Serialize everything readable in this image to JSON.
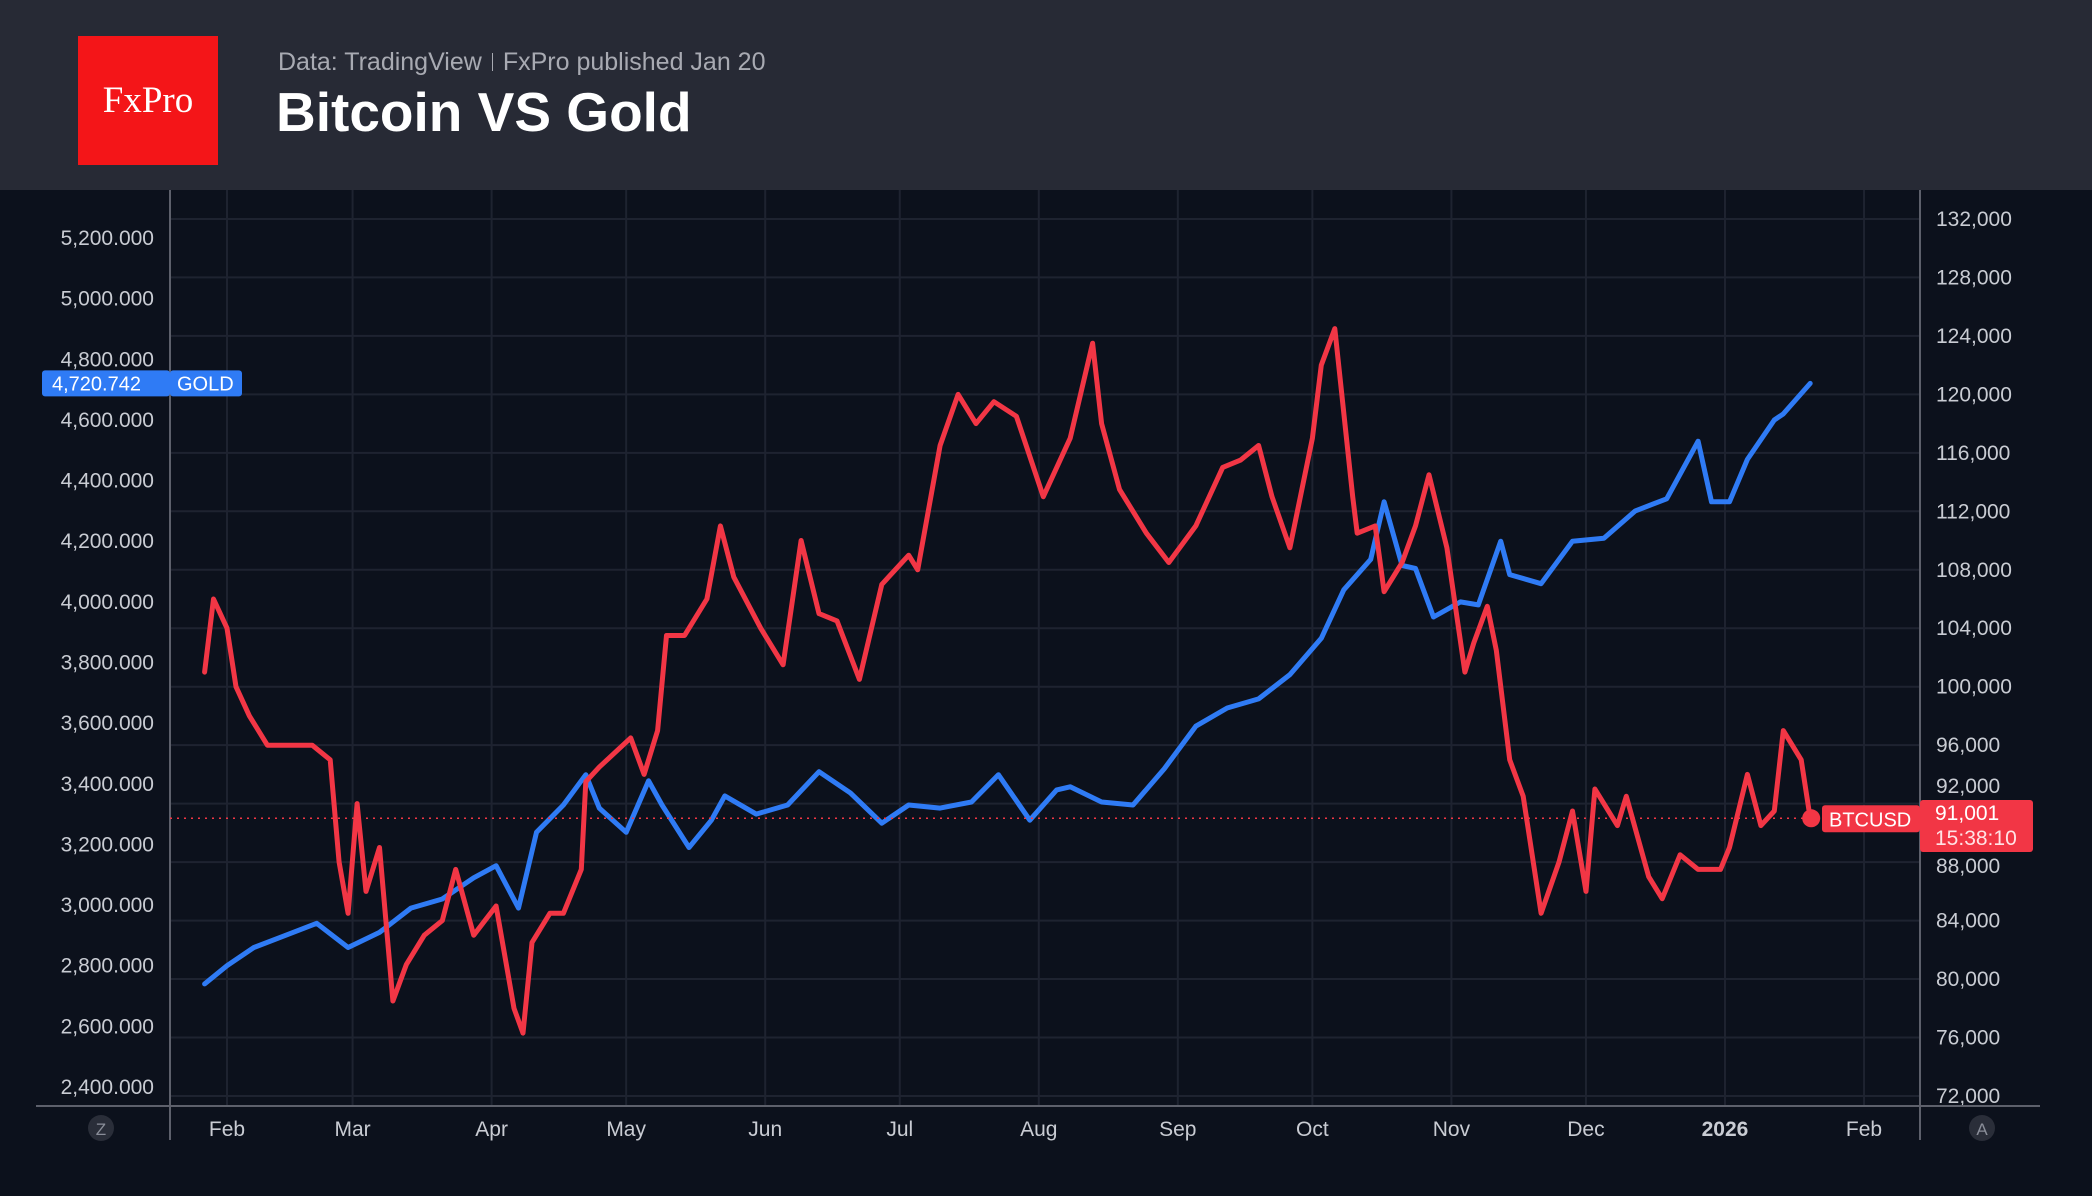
{
  "header": {
    "logo_text": "FxPro",
    "source": "Data: TradingView",
    "published": "FxPro published Jan 20",
    "title": "Bitcoin VS Gold"
  },
  "colors": {
    "gold_series": "#2f7bf5",
    "btc_series": "#f23645",
    "header_bg": "#272a35",
    "chart_bg": "#0c111c",
    "logo_bg": "#f41518"
  },
  "corner_buttons": {
    "left": "Z",
    "right": "A"
  },
  "chart_data": {
    "type": "line",
    "title": "Bitcoin VS Gold",
    "x_ticks": [
      "Feb",
      "Mar",
      "Apr",
      "May",
      "Jun",
      "Jul",
      "Aug",
      "Sep",
      "Oct",
      "Nov",
      "Dec",
      "2026",
      "Feb"
    ],
    "x_tick_dates": [
      "2025-02-01",
      "2025-03-01",
      "2025-04-01",
      "2025-05-01",
      "2025-06-01",
      "2025-07-01",
      "2025-08-01",
      "2025-09-01",
      "2025-10-01",
      "2025-11-01",
      "2025-12-01",
      "2026-01-01",
      "2026-02-01"
    ],
    "left_axis": {
      "ticks": [
        "2,400.000",
        "2,600.000",
        "2,800.000",
        "3,000.000",
        "3,200.000",
        "3,400.000",
        "3,600.000",
        "3,800.000",
        "4,000.000",
        "4,200.000",
        "4,400.000",
        "4,600.000",
        "4,800.000",
        "5,000.000",
        "5,200.000"
      ],
      "range": [
        2400,
        5200
      ]
    },
    "right_axis": {
      "ticks": [
        "72,000",
        "76,000",
        "80,000",
        "84,000",
        "88,000",
        "92,000",
        "96,000",
        "100,000",
        "104,000",
        "108,000",
        "112,000",
        "116,000",
        "120,000",
        "124,000",
        "128,000",
        "132,000"
      ],
      "range": [
        72000,
        132000
      ]
    },
    "grid": true,
    "series": [
      {
        "name": "GOLD",
        "axis": "left",
        "last_value": "4,720.742",
        "points": [
          [
            "2025-01-27",
            2740
          ],
          [
            "2025-02-01",
            2800
          ],
          [
            "2025-02-07",
            2860
          ],
          [
            "2025-02-14",
            2900
          ],
          [
            "2025-02-21",
            2940
          ],
          [
            "2025-02-28",
            2860
          ],
          [
            "2025-03-07",
            2910
          ],
          [
            "2025-03-14",
            2990
          ],
          [
            "2025-03-21",
            3020
          ],
          [
            "2025-03-28",
            3090
          ],
          [
            "2025-04-02",
            3130
          ],
          [
            "2025-04-07",
            2990
          ],
          [
            "2025-04-11",
            3240
          ],
          [
            "2025-04-17",
            3330
          ],
          [
            "2025-04-22",
            3430
          ],
          [
            "2025-04-25",
            3320
          ],
          [
            "2025-05-01",
            3240
          ],
          [
            "2025-05-06",
            3410
          ],
          [
            "2025-05-09",
            3330
          ],
          [
            "2025-05-15",
            3190
          ],
          [
            "2025-05-20",
            3280
          ],
          [
            "2025-05-23",
            3360
          ],
          [
            "2025-05-30",
            3300
          ],
          [
            "2025-06-06",
            3330
          ],
          [
            "2025-06-13",
            3440
          ],
          [
            "2025-06-20",
            3370
          ],
          [
            "2025-06-27",
            3270
          ],
          [
            "2025-07-03",
            3330
          ],
          [
            "2025-07-10",
            3320
          ],
          [
            "2025-07-17",
            3340
          ],
          [
            "2025-07-23",
            3430
          ],
          [
            "2025-07-30",
            3280
          ],
          [
            "2025-08-05",
            3380
          ],
          [
            "2025-08-08",
            3390
          ],
          [
            "2025-08-15",
            3340
          ],
          [
            "2025-08-22",
            3330
          ],
          [
            "2025-08-29",
            3450
          ],
          [
            "2025-09-05",
            3590
          ],
          [
            "2025-09-12",
            3650
          ],
          [
            "2025-09-19",
            3680
          ],
          [
            "2025-09-26",
            3760
          ],
          [
            "2025-10-03",
            3880
          ],
          [
            "2025-10-08",
            4040
          ],
          [
            "2025-10-14",
            4140
          ],
          [
            "2025-10-17",
            4330
          ],
          [
            "2025-10-21",
            4120
          ],
          [
            "2025-10-24",
            4110
          ],
          [
            "2025-10-28",
            3950
          ],
          [
            "2025-11-03",
            4000
          ],
          [
            "2025-11-07",
            3990
          ],
          [
            "2025-11-12",
            4200
          ],
          [
            "2025-11-14",
            4090
          ],
          [
            "2025-11-21",
            4060
          ],
          [
            "2025-11-28",
            4200
          ],
          [
            "2025-12-05",
            4210
          ],
          [
            "2025-12-12",
            4300
          ],
          [
            "2025-12-19",
            4340
          ],
          [
            "2025-12-26",
            4530
          ],
          [
            "2025-12-29",
            4330
          ],
          [
            "2026-01-02",
            4330
          ],
          [
            "2026-01-06",
            4470
          ],
          [
            "2026-01-12",
            4600
          ],
          [
            "2026-01-14",
            4620
          ],
          [
            "2026-01-20",
            4720.742
          ]
        ]
      },
      {
        "name": "BTCUSD",
        "axis": "right",
        "last_value": "91,001",
        "countdown": "15:38:10",
        "points": [
          [
            "2025-01-27",
            101000
          ],
          [
            "2025-01-29",
            106000
          ],
          [
            "2025-02-01",
            104000
          ],
          [
            "2025-02-03",
            100000
          ],
          [
            "2025-02-06",
            98000
          ],
          [
            "2025-02-10",
            96000
          ],
          [
            "2025-02-20",
            96000
          ],
          [
            "2025-02-24",
            95000
          ],
          [
            "2025-02-26",
            88000
          ],
          [
            "2025-02-28",
            84500
          ],
          [
            "2025-03-02",
            92000
          ],
          [
            "2025-03-04",
            86000
          ],
          [
            "2025-03-07",
            89000
          ],
          [
            "2025-03-10",
            78500
          ],
          [
            "2025-03-13",
            81000
          ],
          [
            "2025-03-17",
            83000
          ],
          [
            "2025-03-21",
            84000
          ],
          [
            "2025-03-24",
            87500
          ],
          [
            "2025-03-28",
            83000
          ],
          [
            "2025-04-02",
            85000
          ],
          [
            "2025-04-06",
            78000
          ],
          [
            "2025-04-08",
            76300
          ],
          [
            "2025-04-10",
            82500
          ],
          [
            "2025-04-14",
            84500
          ],
          [
            "2025-04-17",
            84500
          ],
          [
            "2025-04-21",
            87500
          ],
          [
            "2025-04-22",
            93500
          ],
          [
            "2025-04-25",
            94500
          ],
          [
            "2025-05-02",
            96500
          ],
          [
            "2025-05-05",
            94000
          ],
          [
            "2025-05-08",
            97000
          ],
          [
            "2025-05-10",
            103500
          ],
          [
            "2025-05-14",
            103500
          ],
          [
            "2025-05-19",
            106000
          ],
          [
            "2025-05-22",
            111000
          ],
          [
            "2025-05-25",
            107500
          ],
          [
            "2025-05-31",
            104000
          ],
          [
            "2025-06-05",
            101500
          ],
          [
            "2025-06-09",
            110000
          ],
          [
            "2025-06-13",
            105000
          ],
          [
            "2025-06-17",
            104500
          ],
          [
            "2025-06-22",
            100500
          ],
          [
            "2025-06-27",
            107000
          ],
          [
            "2025-07-03",
            109000
          ],
          [
            "2025-07-05",
            108000
          ],
          [
            "2025-07-10",
            116500
          ],
          [
            "2025-07-14",
            120000
          ],
          [
            "2025-07-18",
            118000
          ],
          [
            "2025-07-22",
            119500
          ],
          [
            "2025-07-27",
            118500
          ],
          [
            "2025-08-02",
            113000
          ],
          [
            "2025-08-08",
            117000
          ],
          [
            "2025-08-13",
            123500
          ],
          [
            "2025-08-15",
            118000
          ],
          [
            "2025-08-19",
            113500
          ],
          [
            "2025-08-25",
            110500
          ],
          [
            "2025-08-30",
            108500
          ],
          [
            "2025-09-05",
            111000
          ],
          [
            "2025-09-11",
            115000
          ],
          [
            "2025-09-15",
            115500
          ],
          [
            "2025-09-19",
            116500
          ],
          [
            "2025-09-22",
            113000
          ],
          [
            "2025-09-26",
            109500
          ],
          [
            "2025-10-01",
            117000
          ],
          [
            "2025-10-03",
            122000
          ],
          [
            "2025-10-06",
            124500
          ],
          [
            "2025-10-10",
            113000
          ],
          [
            "2025-10-11",
            110500
          ],
          [
            "2025-10-15",
            111000
          ],
          [
            "2025-10-17",
            106500
          ],
          [
            "2025-10-21",
            108500
          ],
          [
            "2025-10-24",
            111000
          ],
          [
            "2025-10-27",
            114500
          ],
          [
            "2025-10-31",
            109500
          ],
          [
            "2025-11-04",
            101000
          ],
          [
            "2025-11-06",
            103000
          ],
          [
            "2025-11-09",
            105500
          ],
          [
            "2025-11-11",
            102500
          ],
          [
            "2025-11-14",
            95000
          ],
          [
            "2025-11-17",
            92500
          ],
          [
            "2025-11-21",
            84500
          ],
          [
            "2025-11-25",
            88000
          ],
          [
            "2025-11-28",
            91500
          ],
          [
            "2025-12-01",
            86000
          ],
          [
            "2025-12-03",
            93000
          ],
          [
            "2025-12-08",
            90500
          ],
          [
            "2025-12-10",
            92500
          ],
          [
            "2025-12-15",
            87000
          ],
          [
            "2025-12-18",
            85500
          ],
          [
            "2025-12-22",
            88500
          ],
          [
            "2025-12-26",
            87500
          ],
          [
            "2025-12-31",
            87500
          ],
          [
            "2026-01-02",
            89000
          ],
          [
            "2026-01-06",
            94000
          ],
          [
            "2026-01-09",
            90500
          ],
          [
            "2026-01-12",
            91500
          ],
          [
            "2026-01-14",
            97000
          ],
          [
            "2026-01-18",
            95000
          ],
          [
            "2026-01-20",
            91001
          ]
        ]
      }
    ]
  }
}
